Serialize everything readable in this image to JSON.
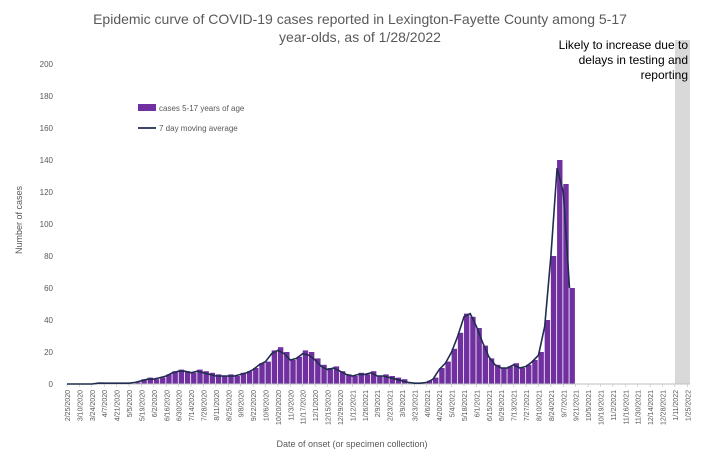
{
  "chart_data": {
    "type": "bar",
    "title": "Epidemic curve of COVID-19 cases reported in Lexington-Fayette County among 5-17 year-olds, as of 1/28/2022",
    "xlabel": "Date of onset (or specimen collection)",
    "ylabel": "Number of cases",
    "ylim": [
      0,
      200
    ],
    "y_ticks": [
      0,
      20,
      40,
      60,
      80,
      100,
      120,
      140,
      160,
      180,
      200
    ],
    "grid": false,
    "legend_position": "top-left",
    "annotation": "Likely to increase due to delays in testing and reporting",
    "highlight_range": [
      "1/11/2022",
      "1/28/2022"
    ],
    "x_tick_labels": [
      "2/25/2020",
      "3/10/2020",
      "3/24/2020",
      "4/7/2020",
      "4/21/2020",
      "5/5/2020",
      "5/19/2020",
      "6/2/2020",
      "6/16/2020",
      "6/30/2020",
      "7/14/2020",
      "7/28/2020",
      "8/11/2020",
      "8/25/2020",
      "9/8/2020",
      "9/22/2020",
      "10/6/2020",
      "10/20/2020",
      "11/3/2020",
      "11/17/2020",
      "12/1/2020",
      "12/15/2020",
      "12/29/2020",
      "1/12/2021",
      "1/26/2021",
      "2/9/2021",
      "2/23/2021",
      "3/9/2021",
      "3/23/2021",
      "4/6/2021",
      "4/20/2021",
      "5/4/2021",
      "5/18/2021",
      "6/1/2021",
      "6/15/2021",
      "6/29/2021",
      "7/13/2021",
      "7/27/2021",
      "8/10/2021",
      "8/24/2021",
      "9/7/2021",
      "9/21/2021",
      "10/5/2021",
      "10/19/2021",
      "11/2/2021",
      "11/16/2021",
      "11/30/2021",
      "12/14/2021",
      "12/28/2021",
      "1/11/2022",
      "1/25/2022"
    ],
    "series": [
      {
        "name": "cases 5-17 years of age",
        "kind": "bar",
        "color": "#7030a0",
        "x_start": "2/25/2020",
        "step_days": 7,
        "values": [
          0,
          0,
          0,
          0,
          0,
          1,
          0,
          0,
          0,
          0,
          0,
          1,
          3,
          4,
          3,
          4,
          6,
          8,
          9,
          8,
          7,
          9,
          8,
          7,
          6,
          5,
          6,
          5,
          7,
          8,
          10,
          13,
          14,
          21,
          23,
          20,
          15,
          17,
          21,
          20,
          16,
          12,
          10,
          11,
          8,
          6,
          5,
          7,
          6,
          8,
          5,
          6,
          5,
          4,
          3,
          1,
          0,
          1,
          2,
          4,
          10,
          14,
          22,
          32,
          44,
          42,
          35,
          24,
          16,
          12,
          10,
          11,
          13,
          10,
          12,
          15,
          20,
          40,
          80,
          140,
          125,
          60
        ]
      },
      {
        "name": "7 day moving average",
        "kind": "line",
        "color": "#1f2d4e",
        "x_start": "2/25/2020",
        "step_days": 7,
        "values": [
          0,
          0,
          0,
          0,
          0,
          0.5,
          0.5,
          0.5,
          0.5,
          0.5,
          0.5,
          1,
          2,
          3,
          3,
          4,
          5,
          7,
          8,
          8,
          7,
          8,
          7,
          6,
          5,
          5,
          5,
          5,
          6,
          7,
          9,
          12,
          14,
          19,
          21,
          19,
          15,
          16,
          19,
          18,
          15,
          11,
          9,
          10,
          8,
          6,
          5,
          6,
          6,
          7,
          5,
          5,
          4,
          3,
          2,
          1,
          0.5,
          0.5,
          1,
          3,
          9,
          13,
          20,
          30,
          42,
          44,
          36,
          26,
          17,
          12,
          10,
          10,
          12,
          10,
          11,
          14,
          18,
          36,
          80,
          135,
          120,
          60
        ]
      }
    ]
  }
}
